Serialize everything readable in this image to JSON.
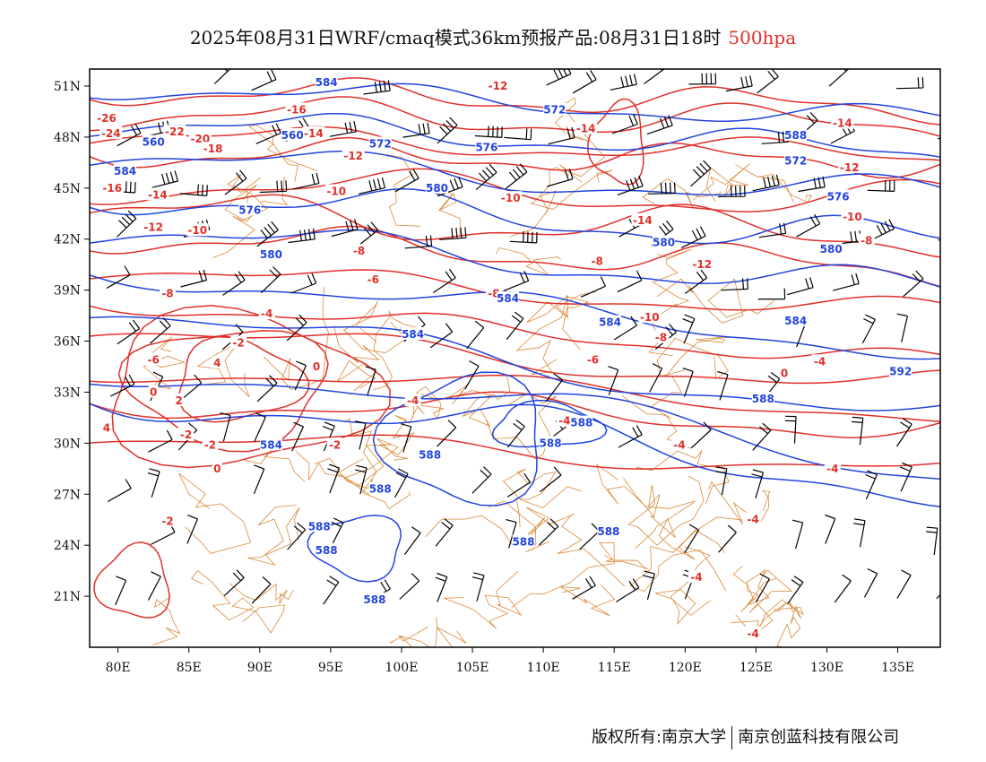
{
  "header": {
    "title": "2025年08月31日WRF/cmaq模式36km预报产品:08月31日18时",
    "level": "500hpa"
  },
  "footer": {
    "copyright": "版权所有:南京大学",
    "company": "南京创蓝科技有限公司"
  },
  "colors": {
    "height_contour": "#2244dd",
    "temperature_contour": "#e0302a",
    "boundaries": "#d98a3a",
    "wind_barbs": "#000000"
  },
  "map": {
    "lon_range": [
      78,
      138
    ],
    "lat_range": [
      18,
      52
    ],
    "x_ticks": [
      "80E",
      "85E",
      "90E",
      "95E",
      "100E",
      "105E",
      "110E",
      "115E",
      "120E",
      "125E",
      "130E",
      "135E"
    ],
    "y_ticks": [
      "51N",
      "48N",
      "45N",
      "42N",
      "39N",
      "36N",
      "33N",
      "30N",
      "27N",
      "24N",
      "21N"
    ],
    "height_labels": [
      {
        "text": "584",
        "lon": 94.7,
        "lat": 51.2
      },
      {
        "text": "572",
        "lon": 110.8,
        "lat": 49.6
      },
      {
        "text": "560",
        "lon": 82.5,
        "lat": 47.7
      },
      {
        "text": "560",
        "lon": 92.3,
        "lat": 48.1
      },
      {
        "text": "572",
        "lon": 98.5,
        "lat": 47.6
      },
      {
        "text": "576",
        "lon": 106.0,
        "lat": 47.4
      },
      {
        "text": "588",
        "lon": 127.8,
        "lat": 48.1
      },
      {
        "text": "584",
        "lon": 80.5,
        "lat": 46.0
      },
      {
        "text": "572",
        "lon": 127.8,
        "lat": 46.6
      },
      {
        "text": "580",
        "lon": 102.5,
        "lat": 45.0
      },
      {
        "text": "576",
        "lon": 130.8,
        "lat": 44.5
      },
      {
        "text": "576",
        "lon": 89.3,
        "lat": 43.7
      },
      {
        "text": "580",
        "lon": 118.5,
        "lat": 41.8
      },
      {
        "text": "580",
        "lon": 130.3,
        "lat": 41.4
      },
      {
        "text": "580",
        "lon": 90.8,
        "lat": 41.1
      },
      {
        "text": "584",
        "lon": 107.5,
        "lat": 38.5
      },
      {
        "text": "584",
        "lon": 114.7,
        "lat": 37.1
      },
      {
        "text": "584",
        "lon": 127.8,
        "lat": 37.2
      },
      {
        "text": "584",
        "lon": 100.8,
        "lat": 36.4
      },
      {
        "text": "592",
        "lon": 135.2,
        "lat": 34.2
      },
      {
        "text": "588",
        "lon": 125.5,
        "lat": 32.6
      },
      {
        "text": "588",
        "lon": 112.7,
        "lat": 31.2
      },
      {
        "text": "588",
        "lon": 110.5,
        "lat": 30.0
      },
      {
        "text": "584",
        "lon": 90.8,
        "lat": 29.9
      },
      {
        "text": "588",
        "lon": 102.0,
        "lat": 29.3
      },
      {
        "text": "588",
        "lon": 98.5,
        "lat": 27.3
      },
      {
        "text": "588",
        "lon": 94.2,
        "lat": 25.1
      },
      {
        "text": "588",
        "lon": 94.7,
        "lat": 23.7
      },
      {
        "text": "588",
        "lon": 108.6,
        "lat": 24.2
      },
      {
        "text": "588",
        "lon": 114.6,
        "lat": 24.8
      },
      {
        "text": "588",
        "lon": 98.1,
        "lat": 20.8
      }
    ],
    "temperature_labels": [
      {
        "text": "-12",
        "lon": 106.8,
        "lat": 51.0
      },
      {
        "text": "-16",
        "lon": 92.6,
        "lat": 49.6
      },
      {
        "text": "-26",
        "lon": 79.2,
        "lat": 49.1
      },
      {
        "text": "-14",
        "lon": 93.8,
        "lat": 48.2
      },
      {
        "text": "-14",
        "lon": 113.0,
        "lat": 48.5
      },
      {
        "text": "-14",
        "lon": 131.1,
        "lat": 48.8
      },
      {
        "text": "-24",
        "lon": 79.5,
        "lat": 48.2
      },
      {
        "text": "-22",
        "lon": 84.0,
        "lat": 48.3
      },
      {
        "text": "-20",
        "lon": 85.8,
        "lat": 47.9
      },
      {
        "text": "-18",
        "lon": 86.7,
        "lat": 47.3
      },
      {
        "text": "-12",
        "lon": 96.6,
        "lat": 46.9
      },
      {
        "text": "-12",
        "lon": 131.6,
        "lat": 46.2
      },
      {
        "text": "-16",
        "lon": 79.6,
        "lat": 45.0
      },
      {
        "text": "-14",
        "lon": 82.8,
        "lat": 44.6
      },
      {
        "text": "-10",
        "lon": 95.4,
        "lat": 44.8
      },
      {
        "text": "-10",
        "lon": 107.7,
        "lat": 44.4
      },
      {
        "text": "-10",
        "lon": 131.8,
        "lat": 43.3
      },
      {
        "text": "-12",
        "lon": 82.5,
        "lat": 42.7
      },
      {
        "text": "-10",
        "lon": 85.6,
        "lat": 42.5
      },
      {
        "text": "-14",
        "lon": 117.0,
        "lat": 43.1
      },
      {
        "text": "-8",
        "lon": 132.8,
        "lat": 41.9
      },
      {
        "text": "-8",
        "lon": 97.0,
        "lat": 41.3
      },
      {
        "text": "-12",
        "lon": 121.2,
        "lat": 40.5
      },
      {
        "text": "-8",
        "lon": 113.8,
        "lat": 40.7
      },
      {
        "text": "-6",
        "lon": 98.0,
        "lat": 39.6
      },
      {
        "text": "-8",
        "lon": 83.5,
        "lat": 38.8
      },
      {
        "text": "-8",
        "lon": 106.5,
        "lat": 38.8
      },
      {
        "text": "-4",
        "lon": 90.5,
        "lat": 37.6
      },
      {
        "text": "-10",
        "lon": 117.5,
        "lat": 37.4
      },
      {
        "text": "-8",
        "lon": 118.3,
        "lat": 36.2
      },
      {
        "text": "-2",
        "lon": 88.5,
        "lat": 35.9
      },
      {
        "text": "-6",
        "lon": 82.5,
        "lat": 34.9
      },
      {
        "text": "-6",
        "lon": 113.5,
        "lat": 34.9
      },
      {
        "text": "0",
        "lon": 94.0,
        "lat": 34.5
      },
      {
        "text": "4",
        "lon": 87.0,
        "lat": 34.7
      },
      {
        "text": "-4",
        "lon": 129.5,
        "lat": 34.8
      },
      {
        "text": "0",
        "lon": 127.0,
        "lat": 34.1
      },
      {
        "text": "0",
        "lon": 82.5,
        "lat": 33.0
      },
      {
        "text": "2",
        "lon": 84.3,
        "lat": 32.5
      },
      {
        "text": "-4",
        "lon": 100.8,
        "lat": 32.5
      },
      {
        "text": "-4",
        "lon": 111.5,
        "lat": 31.3
      },
      {
        "text": "-2",
        "lon": 84.8,
        "lat": 30.5
      },
      {
        "text": "-2",
        "lon": 86.5,
        "lat": 29.9
      },
      {
        "text": "-2",
        "lon": 95.3,
        "lat": 29.9
      },
      {
        "text": "4",
        "lon": 79.2,
        "lat": 30.9
      },
      {
        "text": "-4",
        "lon": 119.6,
        "lat": 29.9
      },
      {
        "text": "0",
        "lon": 87.0,
        "lat": 28.5
      },
      {
        "text": "-4",
        "lon": 130.4,
        "lat": 28.5
      },
      {
        "text": "-2",
        "lon": 83.5,
        "lat": 25.4
      },
      {
        "text": "-4",
        "lon": 124.8,
        "lat": 25.5
      },
      {
        "text": "-4",
        "lon": 120.8,
        "lat": 22.1
      },
      {
        "text": "-4",
        "lon": 124.8,
        "lat": 18.8
      }
    ]
  }
}
